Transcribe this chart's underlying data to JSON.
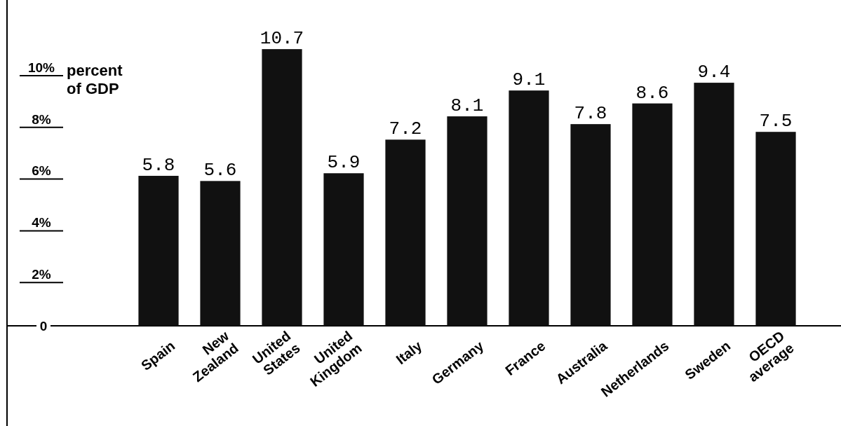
{
  "chart_data": {
    "type": "bar",
    "ylabel": "percent of GDP",
    "categories": [
      "Spain",
      "New Zealand",
      "United States",
      "United Kingdom",
      "Italy",
      "Germany",
      "France",
      "Australia",
      "Netherlands",
      "Sweden",
      "OECD average"
    ],
    "values": [
      5.8,
      5.6,
      10.7,
      5.9,
      7.2,
      8.1,
      9.1,
      7.8,
      8.6,
      9.4,
      7.5
    ],
    "color": "#111111",
    "ylim": [
      0,
      12.6
    ],
    "yticks": [
      0,
      {
        "value": 2,
        "label": "2%"
      },
      {
        "value": 4,
        "label": "4%"
      },
      {
        "value": 6,
        "label": "6%"
      },
      {
        "value": 8,
        "label": "8%"
      },
      {
        "value": 10,
        "label": "10%"
      }
    ],
    "data_labels": true,
    "grid": false
  }
}
